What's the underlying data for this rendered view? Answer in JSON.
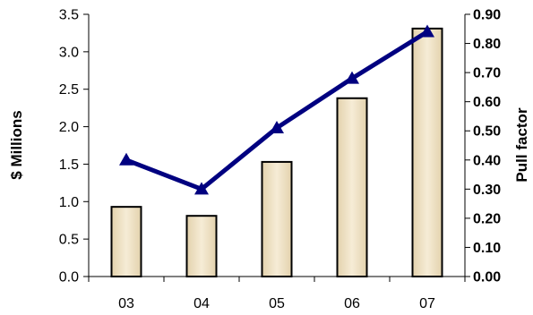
{
  "chart_data": {
    "type": "bar",
    "categories": [
      "03",
      "04",
      "05",
      "06",
      "07"
    ],
    "series": [
      {
        "type": "bar",
        "axis": "left",
        "values": [
          0.93,
          0.81,
          1.53,
          2.38,
          3.31
        ]
      },
      {
        "type": "line",
        "axis": "right",
        "marker": "triangle",
        "values": [
          0.4,
          0.3,
          0.51,
          0.68,
          0.84
        ]
      }
    ],
    "ylabel": "$ Millions",
    "y2label": "Pull factor",
    "ylim": [
      0,
      3.5
    ],
    "y2lim": [
      0,
      0.9
    ],
    "yticks": [
      "0.0",
      "0.5",
      "1.0",
      "1.5",
      "2.0",
      "2.5",
      "3.0",
      "3.5"
    ],
    "y2ticks": [
      "0.00",
      "0.10",
      "0.20",
      "0.30",
      "0.40",
      "0.50",
      "0.60",
      "0.70",
      "0.80",
      "0.90"
    ],
    "grid": false,
    "colors": {
      "bar_fill": "#efe2c8",
      "bar_stroke": "#000000",
      "line": "#000080"
    }
  }
}
